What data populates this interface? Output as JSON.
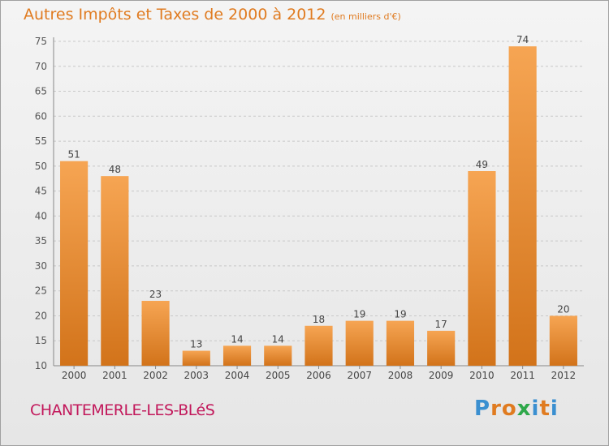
{
  "title": "Autres Impôts et Taxes de 2000 à 2012",
  "subtitle": "(en milliers d'€)",
  "place": "CHANTEMERLE-LES-BLéS",
  "logo": {
    "text": "Proxiti",
    "colors": [
      "#3a8fd0",
      "#e07b20",
      "#e07b20",
      "#2ea84a",
      "#3a8fd0",
      "#e07b20",
      "#3a8fd0"
    ]
  },
  "colors": {
    "bar_top": "#f6a553",
    "bar_bottom": "#d2731a",
    "accent": "#e07b20",
    "place": "#c2185b"
  },
  "chart_data": {
    "type": "bar",
    "categories": [
      "2000",
      "2001",
      "2002",
      "2003",
      "2004",
      "2005",
      "2006",
      "2007",
      "2008",
      "2009",
      "2010",
      "2011",
      "2012"
    ],
    "values": [
      51,
      48,
      23,
      13,
      14,
      14,
      18,
      19,
      19,
      17,
      49,
      74,
      20
    ],
    "title": "Autres Impôts et Taxes de 2000 à 2012",
    "ylim": [
      10,
      75
    ],
    "yticks": [
      10,
      15,
      20,
      25,
      30,
      35,
      40,
      45,
      50,
      55,
      60,
      65,
      70,
      75
    ],
    "grid": "horizontal dashed",
    "data_labels": true
  }
}
